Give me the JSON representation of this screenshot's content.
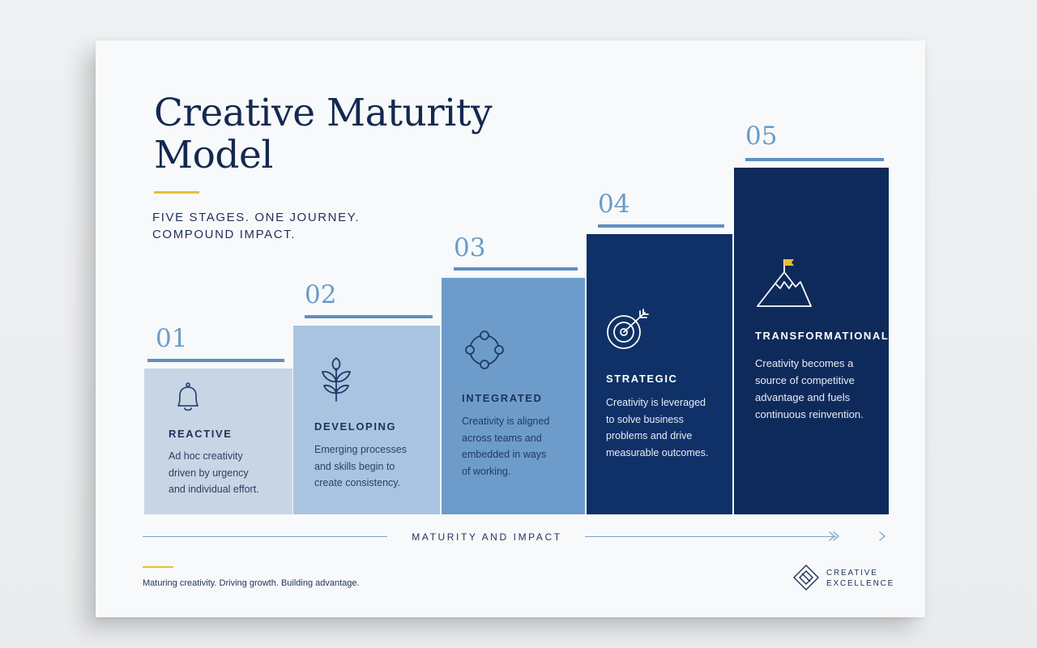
{
  "title": {
    "line1": "Creative Maturity",
    "line2": "Model"
  },
  "tagline": {
    "line1": "FIVE STAGES. ONE JOURNEY.",
    "line2": "COMPOUND IMPACT."
  },
  "colors": {
    "navy": "#13294f",
    "gold": "#e7bd3b",
    "stage1": "#c8d5e5",
    "stage2": "#a9c4e1",
    "stage3": "#6d9ccb",
    "stage4": "#0f3167",
    "stage5": "#0e2a5b"
  },
  "stages": [
    {
      "number": "01",
      "title": "REACTIVE",
      "icon": "bell-icon",
      "desc": [
        "Ad hoc creativity",
        "driven by urgency",
        "and individual effort."
      ]
    },
    {
      "number": "02",
      "title": "DEVELOPING",
      "icon": "sprout-icon",
      "desc": [
        "Emerging processes",
        "and skills begin to",
        "create consistency."
      ]
    },
    {
      "number": "03",
      "title": "INTEGRATED",
      "icon": "connected-nodes-icon",
      "desc": [
        "Creativity is aligned",
        "across teams and",
        "embedded in ways",
        "of working."
      ]
    },
    {
      "number": "04",
      "title": "STRATEGIC",
      "icon": "target-arrow-icon",
      "desc": [
        "Creativity is leveraged",
        "to solve business",
        "problems and drive",
        "measurable outcomes."
      ]
    },
    {
      "number": "05",
      "title": "TRANSFORMATIONAL",
      "icon": "mountain-flag-icon",
      "desc": [
        "Creativity becomes a",
        "source of competitive",
        "advantage and fuels",
        "continuous reinvention."
      ]
    }
  ],
  "axis": {
    "label": "MATURITY AND IMPACT"
  },
  "footer": {
    "text": "Maturing creativity. Driving growth. Building advantage."
  },
  "brand": {
    "line1": "CREATIVE",
    "line2": "EXCELLENCE",
    "icon": "diamond-logo-icon"
  }
}
